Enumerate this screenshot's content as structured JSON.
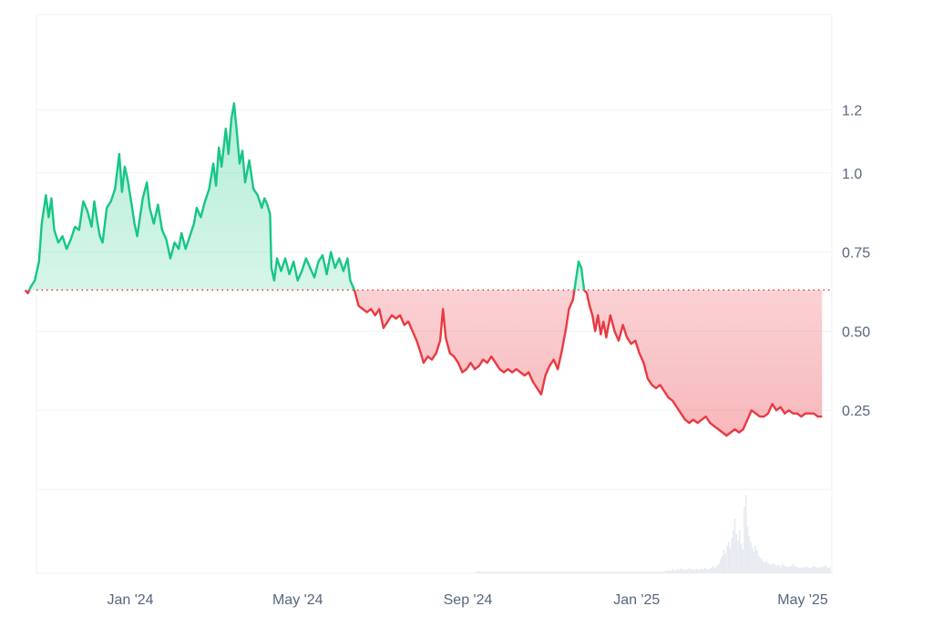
{
  "chart_data": {
    "type": "area",
    "title": "",
    "xlabel": "",
    "ylabel": "",
    "baseline": 0.63,
    "ylim": [
      0,
      1.45
    ],
    "y_ticks": [
      {
        "value": 1.2,
        "label": "1.2"
      },
      {
        "value": 1.0,
        "label": "1.0"
      },
      {
        "value": 0.75,
        "label": "0.75"
      },
      {
        "value": 0.5,
        "label": "0.50"
      },
      {
        "value": 0.25,
        "label": "0.25"
      }
    ],
    "x_ticks": [
      {
        "date": "2024-01-01",
        "label": "Jan '24"
      },
      {
        "date": "2024-05-01",
        "label": "May '24"
      },
      {
        "date": "2024-09-01",
        "label": "Sep '24"
      },
      {
        "date": "2025-01-01",
        "label": "Jan '25"
      },
      {
        "date": "2025-05-01",
        "label": "May '25"
      }
    ],
    "colors": {
      "up": "#16c784",
      "down": "#ea3943",
      "grid": "#eff2f5",
      "axis_text": "#58667e",
      "volume": "#e6eaf0"
    },
    "grid": true,
    "series": [
      {
        "values": [
          [
            "2023-10-17",
            0.63
          ],
          [
            "2023-10-19",
            0.62
          ],
          [
            "2023-10-21",
            0.64
          ],
          [
            "2023-10-24",
            0.66
          ],
          [
            "2023-10-27",
            0.72
          ],
          [
            "2023-10-29",
            0.84
          ],
          [
            "2023-11-01",
            0.93
          ],
          [
            "2023-11-03",
            0.86
          ],
          [
            "2023-11-05",
            0.92
          ],
          [
            "2023-11-07",
            0.82
          ],
          [
            "2023-11-10",
            0.78
          ],
          [
            "2023-11-13",
            0.8
          ],
          [
            "2023-11-16",
            0.76
          ],
          [
            "2023-11-19",
            0.79
          ],
          [
            "2023-11-22",
            0.83
          ],
          [
            "2023-11-25",
            0.82
          ],
          [
            "2023-11-28",
            0.91
          ],
          [
            "2023-12-01",
            0.88
          ],
          [
            "2023-12-04",
            0.83
          ],
          [
            "2023-12-06",
            0.91
          ],
          [
            "2023-12-08",
            0.85
          ],
          [
            "2023-12-10",
            0.8
          ],
          [
            "2023-12-12",
            0.78
          ],
          [
            "2023-12-15",
            0.89
          ],
          [
            "2023-12-18",
            0.91
          ],
          [
            "2023-12-21",
            0.95
          ],
          [
            "2023-12-24",
            1.06
          ],
          [
            "2023-12-26",
            0.94
          ],
          [
            "2023-12-28",
            1.02
          ],
          [
            "2023-12-30",
            0.98
          ],
          [
            "2024-01-02",
            0.9
          ],
          [
            "2024-01-04",
            0.84
          ],
          [
            "2024-01-06",
            0.8
          ],
          [
            "2024-01-08",
            0.86
          ],
          [
            "2024-01-10",
            0.92
          ],
          [
            "2024-01-13",
            0.97
          ],
          [
            "2024-01-15",
            0.89
          ],
          [
            "2024-01-18",
            0.84
          ],
          [
            "2024-01-21",
            0.9
          ],
          [
            "2024-01-24",
            0.82
          ],
          [
            "2024-01-27",
            0.79
          ],
          [
            "2024-01-30",
            0.73
          ],
          [
            "2024-02-02",
            0.78
          ],
          [
            "2024-02-05",
            0.76
          ],
          [
            "2024-02-07",
            0.81
          ],
          [
            "2024-02-10",
            0.76
          ],
          [
            "2024-02-13",
            0.8
          ],
          [
            "2024-02-16",
            0.84
          ],
          [
            "2024-02-18",
            0.89
          ],
          [
            "2024-02-21",
            0.86
          ],
          [
            "2024-02-24",
            0.91
          ],
          [
            "2024-02-27",
            0.95
          ],
          [
            "2024-03-01",
            1.03
          ],
          [
            "2024-03-03",
            0.96
          ],
          [
            "2024-03-05",
            1.08
          ],
          [
            "2024-03-07",
            1.02
          ],
          [
            "2024-03-10",
            1.14
          ],
          [
            "2024-03-12",
            1.06
          ],
          [
            "2024-03-14",
            1.17
          ],
          [
            "2024-03-16",
            1.22
          ],
          [
            "2024-03-18",
            1.13
          ],
          [
            "2024-03-20",
            1.03
          ],
          [
            "2024-03-22",
            1.07
          ],
          [
            "2024-03-24",
            0.97
          ],
          [
            "2024-03-27",
            1.04
          ],
          [
            "2024-03-30",
            0.95
          ],
          [
            "2024-04-02",
            0.93
          ],
          [
            "2024-04-05",
            0.89
          ],
          [
            "2024-04-07",
            0.92
          ],
          [
            "2024-04-09",
            0.9
          ],
          [
            "2024-04-11",
            0.87
          ],
          [
            "2024-04-12",
            0.7
          ],
          [
            "2024-04-14",
            0.66
          ],
          [
            "2024-04-16",
            0.73
          ],
          [
            "2024-04-19",
            0.69
          ],
          [
            "2024-04-22",
            0.73
          ],
          [
            "2024-04-25",
            0.68
          ],
          [
            "2024-04-28",
            0.72
          ],
          [
            "2024-05-01",
            0.66
          ],
          [
            "2024-05-04",
            0.69
          ],
          [
            "2024-05-07",
            0.73
          ],
          [
            "2024-05-10",
            0.7
          ],
          [
            "2024-05-13",
            0.67
          ],
          [
            "2024-05-16",
            0.72
          ],
          [
            "2024-05-19",
            0.74
          ],
          [
            "2024-05-22",
            0.68
          ],
          [
            "2024-05-25",
            0.75
          ],
          [
            "2024-05-28",
            0.7
          ],
          [
            "2024-05-31",
            0.73
          ],
          [
            "2024-06-03",
            0.69
          ],
          [
            "2024-06-06",
            0.73
          ],
          [
            "2024-06-08",
            0.66
          ],
          [
            "2024-06-11",
            0.63
          ],
          [
            "2024-06-14",
            0.58
          ],
          [
            "2024-06-17",
            0.57
          ],
          [
            "2024-06-20",
            0.56
          ],
          [
            "2024-06-23",
            0.57
          ],
          [
            "2024-06-26",
            0.55
          ],
          [
            "2024-06-29",
            0.57
          ],
          [
            "2024-07-02",
            0.51
          ],
          [
            "2024-07-05",
            0.53
          ],
          [
            "2024-07-08",
            0.55
          ],
          [
            "2024-07-11",
            0.54
          ],
          [
            "2024-07-14",
            0.55
          ],
          [
            "2024-07-17",
            0.52
          ],
          [
            "2024-07-20",
            0.53
          ],
          [
            "2024-07-23",
            0.5
          ],
          [
            "2024-07-26",
            0.47
          ],
          [
            "2024-07-29",
            0.43
          ],
          [
            "2024-07-31",
            0.4
          ],
          [
            "2024-08-03",
            0.42
          ],
          [
            "2024-08-06",
            0.41
          ],
          [
            "2024-08-09",
            0.43
          ],
          [
            "2024-08-12",
            0.47
          ],
          [
            "2024-08-14",
            0.57
          ],
          [
            "2024-08-16",
            0.48
          ],
          [
            "2024-08-19",
            0.43
          ],
          [
            "2024-08-22",
            0.42
          ],
          [
            "2024-08-25",
            0.4
          ],
          [
            "2024-08-28",
            0.37
          ],
          [
            "2024-08-31",
            0.38
          ],
          [
            "2024-09-03",
            0.4
          ],
          [
            "2024-09-06",
            0.38
          ],
          [
            "2024-09-09",
            0.39
          ],
          [
            "2024-09-12",
            0.41
          ],
          [
            "2024-09-15",
            0.4
          ],
          [
            "2024-09-18",
            0.42
          ],
          [
            "2024-09-21",
            0.4
          ],
          [
            "2024-09-24",
            0.38
          ],
          [
            "2024-09-27",
            0.37
          ],
          [
            "2024-09-30",
            0.38
          ],
          [
            "2024-10-03",
            0.37
          ],
          [
            "2024-10-06",
            0.38
          ],
          [
            "2024-10-09",
            0.37
          ],
          [
            "2024-10-12",
            0.36
          ],
          [
            "2024-10-15",
            0.37
          ],
          [
            "2024-10-18",
            0.34
          ],
          [
            "2024-10-21",
            0.32
          ],
          [
            "2024-10-24",
            0.3
          ],
          [
            "2024-10-27",
            0.36
          ],
          [
            "2024-10-30",
            0.39
          ],
          [
            "2024-11-02",
            0.41
          ],
          [
            "2024-11-05",
            0.38
          ],
          [
            "2024-11-08",
            0.44
          ],
          [
            "2024-11-11",
            0.51
          ],
          [
            "2024-11-13",
            0.57
          ],
          [
            "2024-11-16",
            0.6
          ],
          [
            "2024-11-18",
            0.66
          ],
          [
            "2024-11-20",
            0.72
          ],
          [
            "2024-11-22",
            0.7
          ],
          [
            "2024-11-24",
            0.63
          ],
          [
            "2024-11-26",
            0.62
          ],
          [
            "2024-11-28",
            0.58
          ],
          [
            "2024-11-30",
            0.55
          ],
          [
            "2024-12-02",
            0.5
          ],
          [
            "2024-12-04",
            0.55
          ],
          [
            "2024-12-06",
            0.49
          ],
          [
            "2024-12-08",
            0.53
          ],
          [
            "2024-12-10",
            0.48
          ],
          [
            "2024-12-13",
            0.55
          ],
          [
            "2024-12-16",
            0.5
          ],
          [
            "2024-12-19",
            0.47
          ],
          [
            "2024-12-22",
            0.52
          ],
          [
            "2024-12-25",
            0.48
          ],
          [
            "2024-12-28",
            0.46
          ],
          [
            "2024-12-31",
            0.47
          ],
          [
            "2025-01-03",
            0.43
          ],
          [
            "2025-01-06",
            0.4
          ],
          [
            "2025-01-09",
            0.35
          ],
          [
            "2025-01-12",
            0.33
          ],
          [
            "2025-01-15",
            0.32
          ],
          [
            "2025-01-18",
            0.33
          ],
          [
            "2025-01-21",
            0.31
          ],
          [
            "2025-01-24",
            0.29
          ],
          [
            "2025-01-27",
            0.28
          ],
          [
            "2025-01-30",
            0.26
          ],
          [
            "2025-02-02",
            0.24
          ],
          [
            "2025-02-05",
            0.22
          ],
          [
            "2025-02-08",
            0.21
          ],
          [
            "2025-02-11",
            0.22
          ],
          [
            "2025-02-14",
            0.21
          ],
          [
            "2025-02-17",
            0.22
          ],
          [
            "2025-02-20",
            0.23
          ],
          [
            "2025-02-23",
            0.21
          ],
          [
            "2025-02-26",
            0.2
          ],
          [
            "2025-03-01",
            0.19
          ],
          [
            "2025-03-04",
            0.18
          ],
          [
            "2025-03-07",
            0.17
          ],
          [
            "2025-03-10",
            0.18
          ],
          [
            "2025-03-13",
            0.19
          ],
          [
            "2025-03-16",
            0.18
          ],
          [
            "2025-03-19",
            0.19
          ],
          [
            "2025-03-22",
            0.22
          ],
          [
            "2025-03-25",
            0.25
          ],
          [
            "2025-03-28",
            0.24
          ],
          [
            "2025-03-31",
            0.23
          ],
          [
            "2025-04-03",
            0.23
          ],
          [
            "2025-04-06",
            0.24
          ],
          [
            "2025-04-09",
            0.27
          ],
          [
            "2025-04-12",
            0.25
          ],
          [
            "2025-04-15",
            0.26
          ],
          [
            "2025-04-18",
            0.24
          ],
          [
            "2025-04-21",
            0.25
          ],
          [
            "2025-04-24",
            0.24
          ],
          [
            "2025-04-27",
            0.24
          ],
          [
            "2025-04-30",
            0.23
          ],
          [
            "2025-05-03",
            0.24
          ],
          [
            "2025-05-06",
            0.24
          ],
          [
            "2025-05-09",
            0.24
          ],
          [
            "2025-05-12",
            0.23
          ],
          [
            "2025-05-15",
            0.23
          ]
        ]
      }
    ],
    "volume_relative": [
      0.02,
      0.02,
      0.02,
      0.02,
      0.02,
      0.02,
      0.02,
      0.02,
      0.02,
      0.02,
      0.02,
      0.02,
      0.02,
      0.02,
      0.02,
      0.02,
      0.02,
      0.02,
      0.02,
      0.02,
      0.02,
      0.02,
      0.02,
      0.02,
      0.02,
      0.02,
      0.02,
      0.02,
      0.02,
      0.02,
      0.02,
      0.02,
      0.02,
      0.02,
      0.02,
      0.02,
      0.02,
      0.02,
      0.02,
      0.02,
      0.02,
      0.02,
      0.02,
      0.02,
      0.02,
      0.02,
      0.02,
      0.02,
      0.02,
      0.02,
      0.02,
      0.02,
      0.02,
      0.02,
      0.02,
      0.02,
      0.02,
      0.02,
      0.02,
      0.02,
      0.02,
      0.02,
      0.02,
      0.02,
      0.02,
      0.02,
      0.02,
      0.02,
      0.02,
      0.02,
      0.02,
      0.02,
      0.02,
      0.02,
      0.02,
      0.02,
      0.02,
      0.02,
      0.02,
      0.02,
      0.02,
      0.02,
      0.02,
      0.02,
      0.02,
      0.02,
      0.02,
      0.02,
      0.02,
      0.02,
      0.02,
      0.02,
      0.02,
      0.02,
      0.02,
      0.02,
      0.02,
      0.02,
      0.02,
      0.02,
      0.02,
      0.02,
      0.02,
      0.02,
      0.02,
      0.02,
      0.02,
      0.02,
      0.02,
      0.02,
      0.02,
      0.02,
      0.02,
      0.02,
      0.02,
      0.02,
      0.02,
      0.02,
      0.02,
      0.03,
      0.03,
      0.04,
      0.03,
      0.04,
      0.05,
      0.03,
      0.04,
      0.05,
      0.04,
      0.06,
      0.05,
      0.04,
      0.05,
      0.04,
      0.06,
      0.05,
      0.05,
      0.04,
      0.05,
      0.06,
      0.05,
      0.05,
      0.06,
      0.05,
      0.07,
      0.06,
      0.05,
      0.06,
      0.07,
      0.09,
      0.06,
      0.08,
      0.1,
      0.12,
      0.18,
      0.22,
      0.3,
      0.25,
      0.35,
      0.4,
      0.32,
      0.45,
      0.55,
      0.7,
      0.5,
      0.42,
      0.55,
      0.38,
      0.3,
      0.85,
      1.0,
      0.6,
      0.48,
      0.4,
      0.33,
      0.28,
      0.35,
      0.3,
      0.22,
      0.2,
      0.18,
      0.15,
      0.14,
      0.16,
      0.13,
      0.12,
      0.11,
      0.13,
      0.12,
      0.1,
      0.11,
      0.1,
      0.09,
      0.12,
      0.1,
      0.09,
      0.08,
      0.08,
      0.09,
      0.1,
      0.12,
      0.09,
      0.08,
      0.07,
      0.07,
      0.08,
      0.07,
      0.08,
      0.09,
      0.08,
      0.07,
      0.07,
      0.08,
      0.09,
      0.08,
      0.07,
      0.08,
      0.07,
      0.08,
      0.09,
      0.1,
      0.08,
      0.07,
      0.08
    ]
  }
}
